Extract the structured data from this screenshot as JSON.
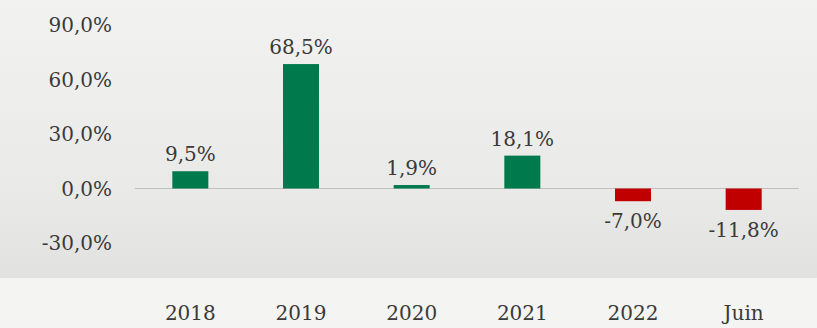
{
  "chart_data": {
    "type": "bar",
    "categories": [
      "2018",
      "2019",
      "2020",
      "2021",
      "2022",
      "Juin"
    ],
    "values": [
      9.5,
      68.5,
      1.9,
      18.1,
      -7.0,
      -11.8
    ],
    "value_labels": [
      "9,5%",
      "68,5%",
      "1,9%",
      "18,1%",
      "-7,0%",
      "-11,8%"
    ],
    "colors": [
      "#007a4d",
      "#007a4d",
      "#007a4d",
      "#007a4d",
      "#c00000",
      "#c00000"
    ],
    "ylim": [
      -30,
      90
    ],
    "yticks": [
      {
        "value": -30,
        "label": "-30,0%"
      },
      {
        "value": 0,
        "label": "0,0%"
      },
      {
        "value": 30,
        "label": "30,0%"
      },
      {
        "value": 60,
        "label": "60,0%"
      },
      {
        "value": 90,
        "label": "90,0%"
      }
    ],
    "grid": false,
    "data_labels": true
  }
}
